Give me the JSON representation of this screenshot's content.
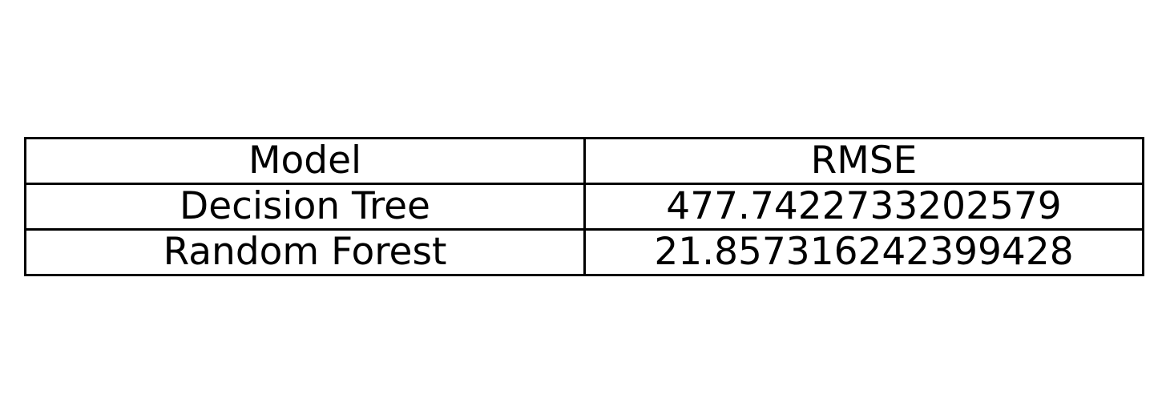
{
  "chart_data": {
    "type": "table",
    "columns": [
      "Model",
      "RMSE"
    ],
    "rows": [
      [
        "Decision Tree",
        "477.7422733202579"
      ],
      [
        "Random Forest",
        "21.857316242399428"
      ]
    ],
    "grid": true
  },
  "colors": {
    "background": "#ffffff",
    "border": "#000000",
    "text": "#000000"
  }
}
